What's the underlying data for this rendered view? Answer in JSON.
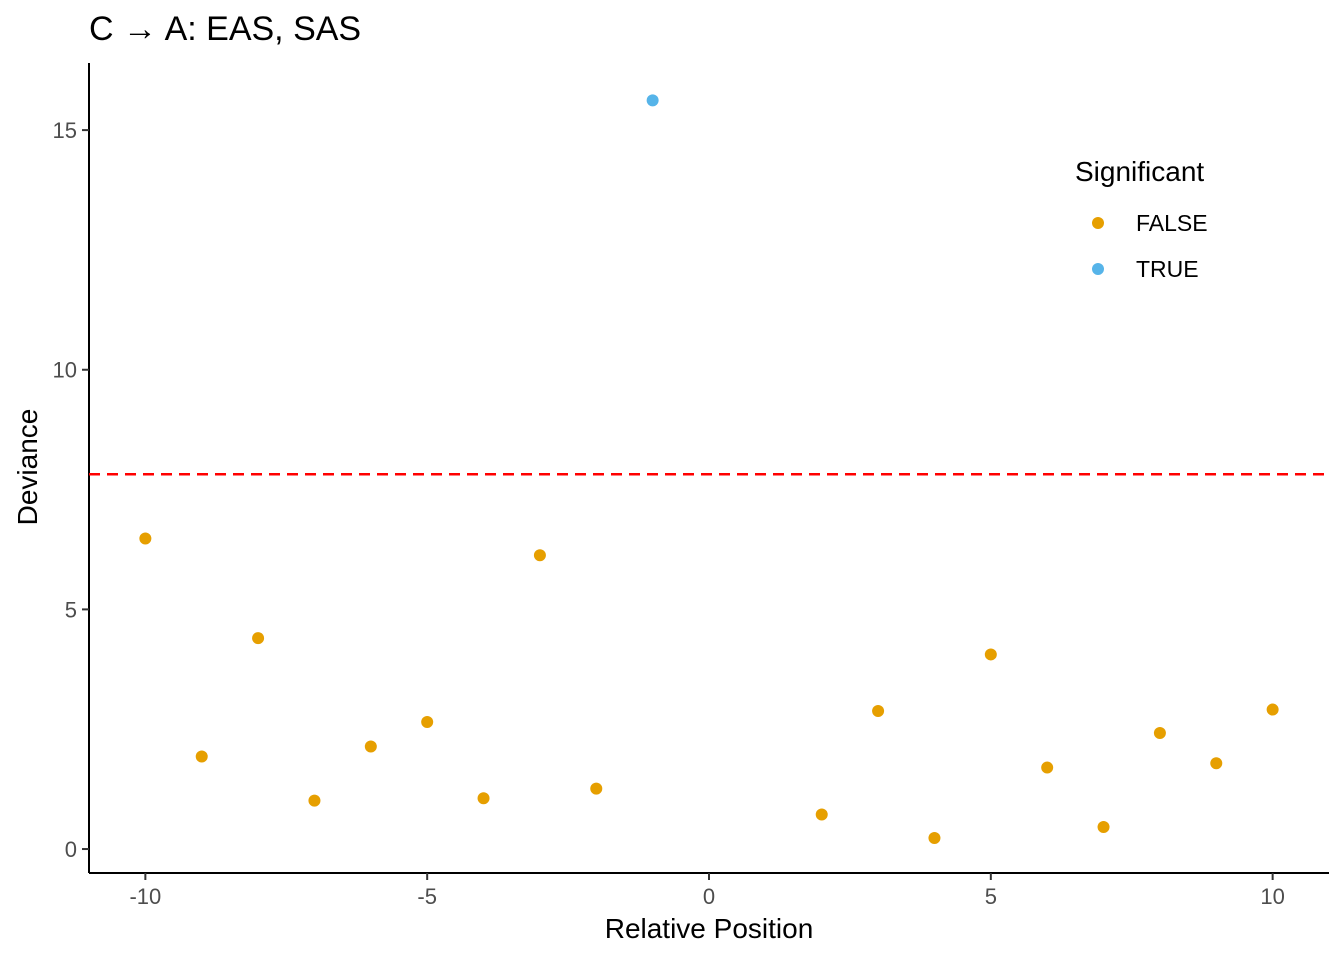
{
  "chart_data": {
    "type": "scatter",
    "title": "C → A: EAS, SAS",
    "xlabel": "Relative Position",
    "ylabel": "Deviance",
    "xlim": [
      -11,
      11
    ],
    "ylim": [
      -0.5,
      16.4
    ],
    "xticks": [
      -10,
      -5,
      0,
      5,
      10
    ],
    "xtick_labels": [
      "-10",
      "-5",
      "0",
      "5",
      "10"
    ],
    "yticks": [
      0,
      5,
      10,
      15
    ],
    "ytick_labels": [
      "0",
      "5",
      "10",
      "15"
    ],
    "grid": false,
    "threshold": {
      "y": 7.82,
      "color": "#ff0000",
      "style": "dashed"
    },
    "legend": {
      "title": "Significant",
      "position": "top-right",
      "entries": [
        {
          "label": "FALSE",
          "color": "#e69f00"
        },
        {
          "label": "TRUE",
          "color": "#56b4e9"
        }
      ]
    },
    "points": [
      {
        "x": -10,
        "y": 6.48,
        "significant": false
      },
      {
        "x": -9,
        "y": 1.93,
        "significant": false
      },
      {
        "x": -8,
        "y": 4.4,
        "significant": false
      },
      {
        "x": -7,
        "y": 1.01,
        "significant": false
      },
      {
        "x": -6,
        "y": 2.14,
        "significant": false
      },
      {
        "x": -5,
        "y": 2.65,
        "significant": false
      },
      {
        "x": -4,
        "y": 1.06,
        "significant": false
      },
      {
        "x": -3,
        "y": 6.13,
        "significant": false
      },
      {
        "x": -2,
        "y": 1.26,
        "significant": false
      },
      {
        "x": -1,
        "y": 15.62,
        "significant": true
      },
      {
        "x": 2,
        "y": 0.72,
        "significant": false
      },
      {
        "x": 3,
        "y": 2.88,
        "significant": false
      },
      {
        "x": 4,
        "y": 0.23,
        "significant": false
      },
      {
        "x": 5,
        "y": 4.06,
        "significant": false
      },
      {
        "x": 6,
        "y": 1.7,
        "significant": false
      },
      {
        "x": 7,
        "y": 0.46,
        "significant": false
      },
      {
        "x": 8,
        "y": 2.42,
        "significant": false
      },
      {
        "x": 9,
        "y": 1.79,
        "significant": false
      },
      {
        "x": 10,
        "y": 2.91,
        "significant": false
      }
    ]
  }
}
